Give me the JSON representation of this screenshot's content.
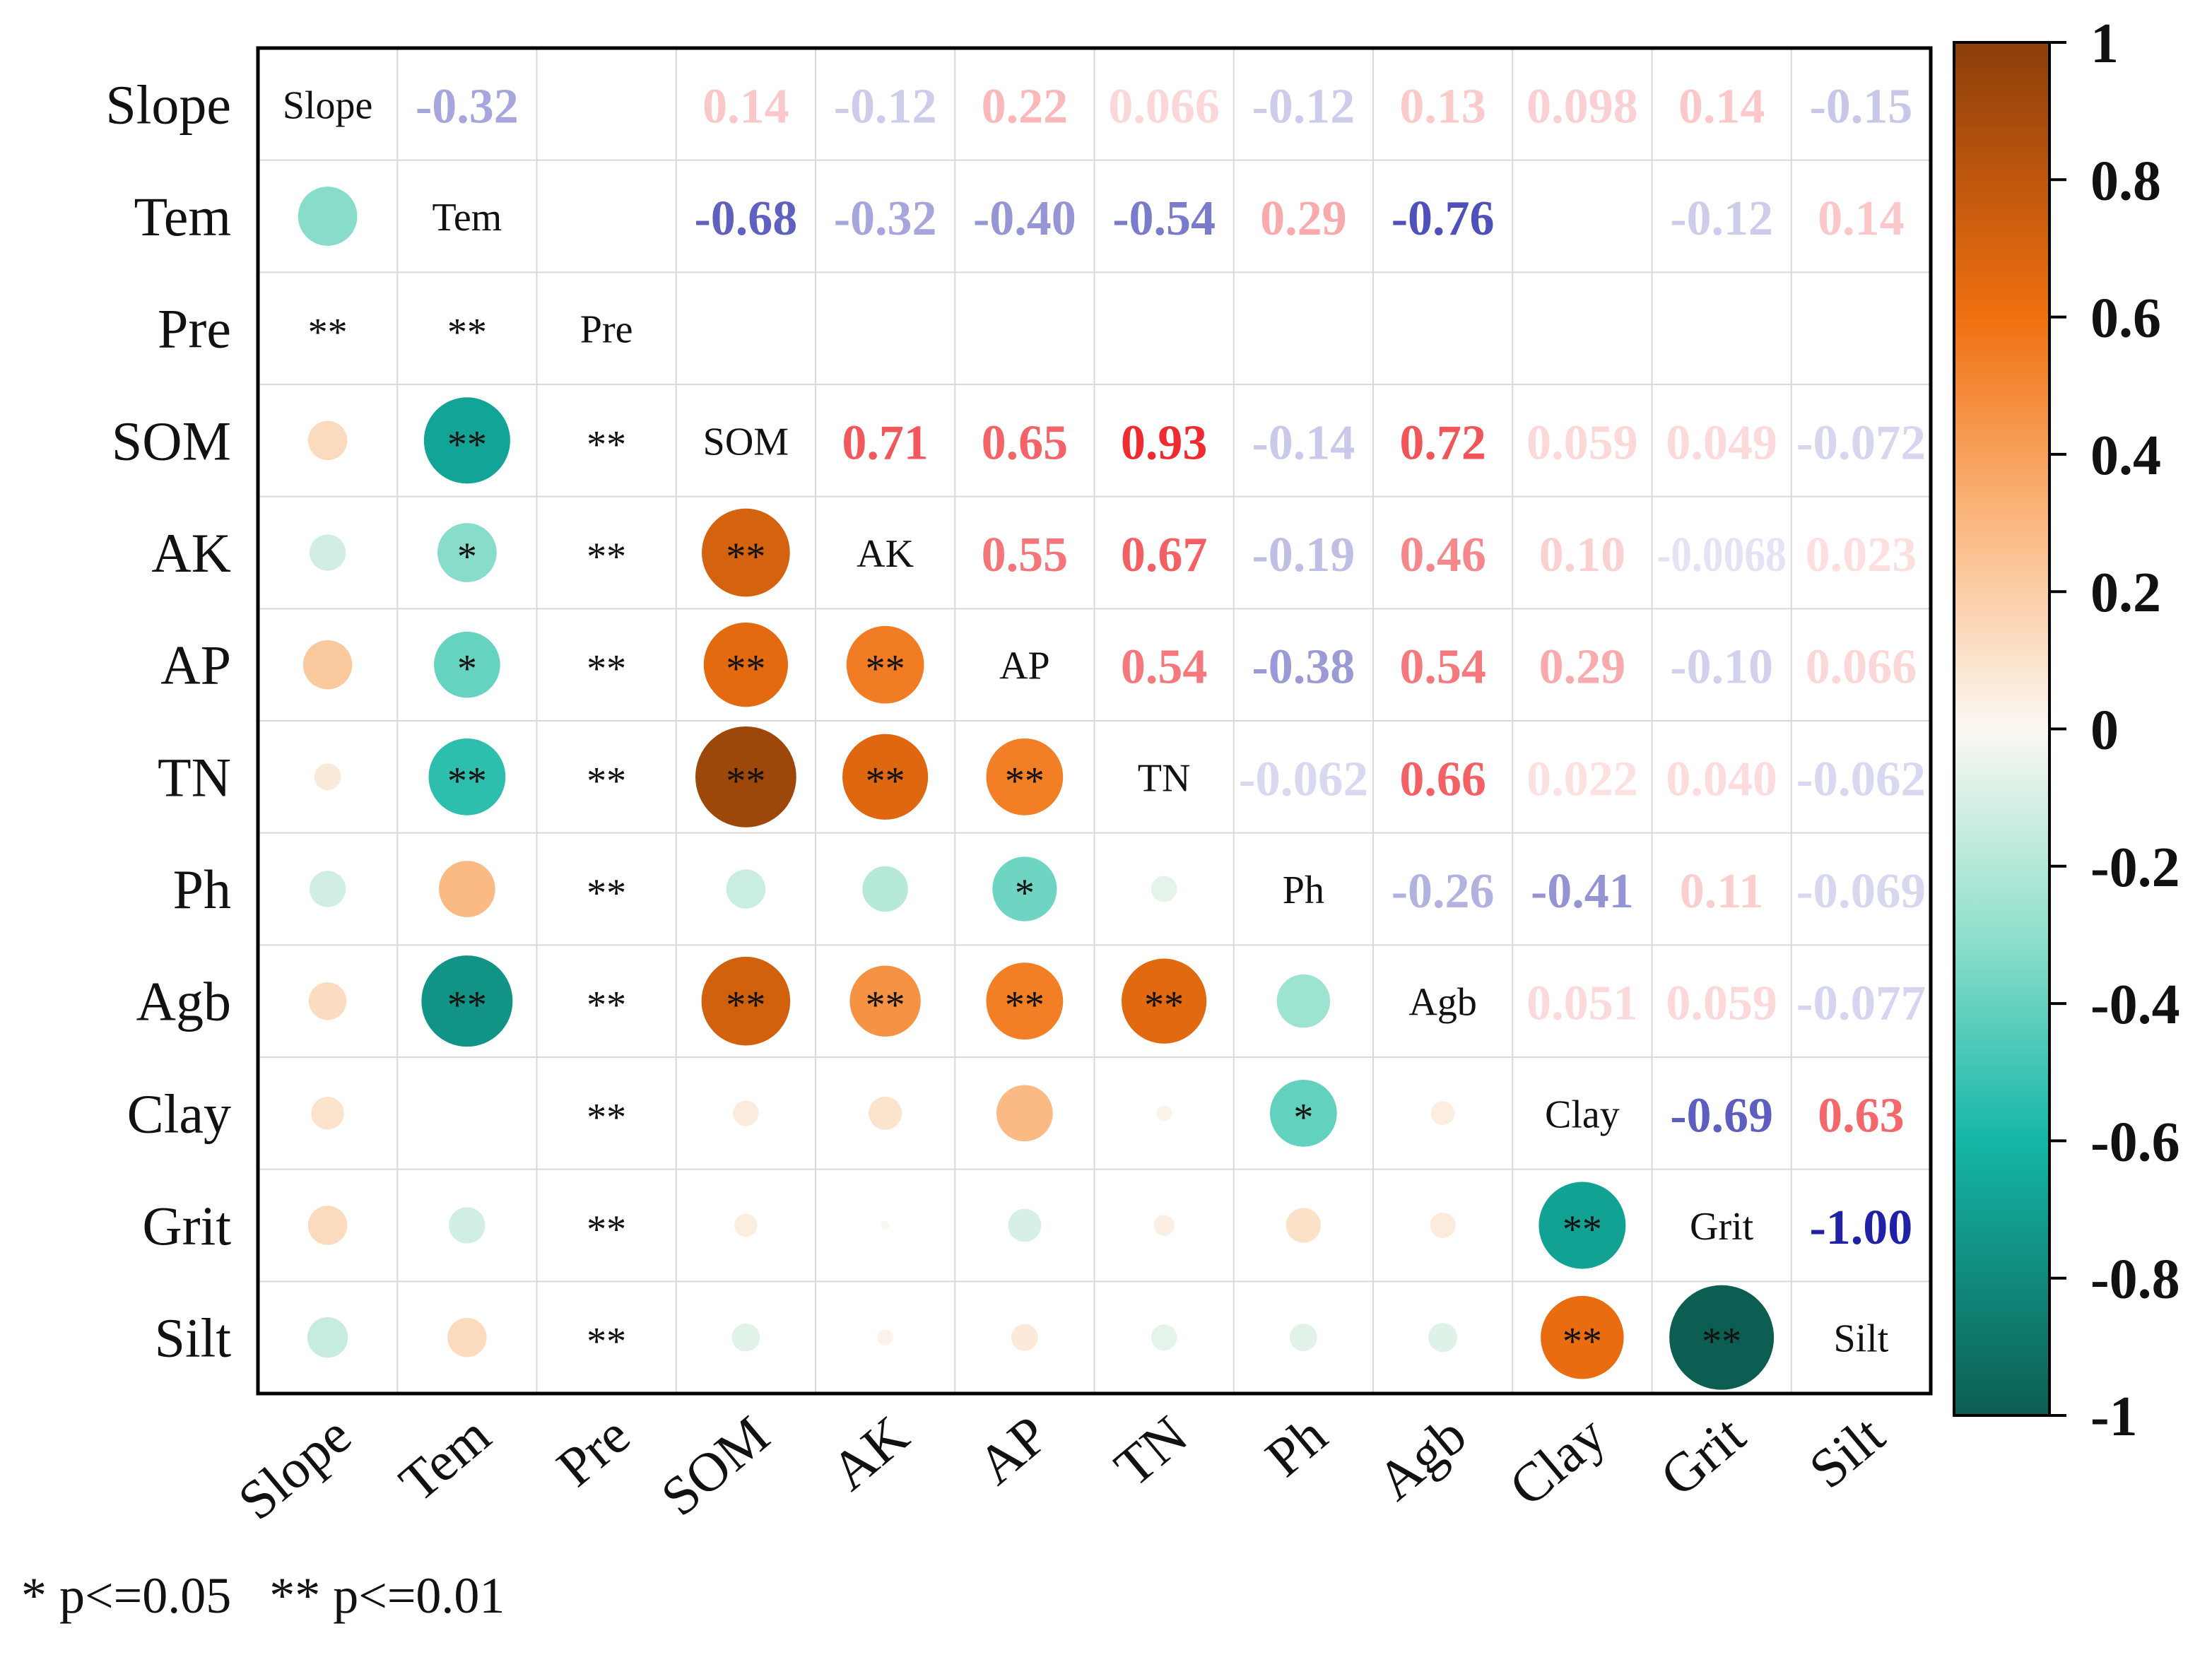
{
  "chart_data": {
    "type": "heatmap",
    "variables": [
      "Slope",
      "Tem",
      "Pre",
      "SOM",
      "AK",
      "AP",
      "TN",
      "Ph",
      "Agb",
      "Clay",
      "Grit",
      "Silt"
    ],
    "upper_labels": [
      [
        null,
        "-0.32",
        null,
        "0.14",
        "-0.12",
        "0.22",
        "0.066",
        "-0.12",
        "0.13",
        "0.098",
        "0.14",
        "-0.15"
      ],
      [
        null,
        null,
        null,
        "-0.68",
        "-0.32",
        "-0.40",
        "-0.54",
        "0.29",
        "-0.76",
        null,
        "-0.12",
        "0.14"
      ],
      [
        null,
        null,
        null,
        null,
        null,
        null,
        null,
        null,
        null,
        null,
        null,
        null
      ],
      [
        null,
        null,
        null,
        null,
        "0.71",
        "0.65",
        "0.93",
        "-0.14",
        "0.72",
        "0.059",
        "0.049",
        "-0.072"
      ],
      [
        null,
        null,
        null,
        null,
        null,
        "0.55",
        "0.67",
        "-0.19",
        "0.46",
        "0.10",
        "-0.0068",
        "0.023"
      ],
      [
        null,
        null,
        null,
        null,
        null,
        null,
        "0.54",
        "-0.38",
        "0.54",
        "0.29",
        "-0.10",
        "0.066"
      ],
      [
        null,
        null,
        null,
        null,
        null,
        null,
        null,
        "-0.062",
        "0.66",
        "0.022",
        "0.040",
        "-0.062"
      ],
      [
        null,
        null,
        null,
        null,
        null,
        null,
        null,
        null,
        "-0.26",
        "-0.41",
        "0.11",
        "-0.069"
      ],
      [
        null,
        null,
        null,
        null,
        null,
        null,
        null,
        null,
        null,
        "0.051",
        "0.059",
        "-0.077"
      ],
      [
        null,
        null,
        null,
        null,
        null,
        null,
        null,
        null,
        null,
        null,
        "-0.69",
        "0.63"
      ],
      [
        null,
        null,
        null,
        null,
        null,
        null,
        null,
        null,
        null,
        null,
        null,
        "-1.00"
      ],
      [
        null,
        null,
        null,
        null,
        null,
        null,
        null,
        null,
        null,
        null,
        null,
        null
      ]
    ],
    "lower_values": [
      [],
      [
        -0.32
      ],
      [
        null,
        null
      ],
      [
        0.14,
        -0.68,
        null
      ],
      [
        -0.12,
        -0.32,
        null,
        0.71
      ],
      [
        0.22,
        -0.4,
        null,
        0.65,
        0.55
      ],
      [
        0.066,
        -0.54,
        null,
        0.93,
        0.67,
        0.54
      ],
      [
        -0.12,
        0.29,
        null,
        -0.14,
        -0.19,
        -0.38,
        -0.062
      ],
      [
        0.13,
        -0.76,
        null,
        0.72,
        0.46,
        0.54,
        0.66,
        -0.26
      ],
      [
        0.098,
        0.0,
        null,
        0.059,
        0.1,
        0.29,
        0.022,
        -0.41,
        0.051
      ],
      [
        0.14,
        -0.12,
        null,
        0.049,
        -0.0068,
        -0.1,
        0.04,
        0.11,
        0.059,
        -0.69
      ],
      [
        -0.15,
        0.14,
        null,
        -0.072,
        0.023,
        0.066,
        -0.062,
        -0.069,
        -0.077,
        0.63,
        -1.0
      ]
    ],
    "significance": [
      [],
      [
        ""
      ],
      [
        "**",
        "**"
      ],
      [
        "",
        "**",
        "**"
      ],
      [
        "",
        "*",
        "**",
        "**"
      ],
      [
        "",
        "*",
        "**",
        "**",
        "**"
      ],
      [
        "",
        "**",
        "**",
        "**",
        "**",
        "**"
      ],
      [
        "",
        "",
        "**",
        "",
        "",
        "*",
        ""
      ],
      [
        "",
        "**",
        "**",
        "**",
        "**",
        "**",
        "**",
        ""
      ],
      [
        "",
        "",
        "**",
        "",
        "",
        "",
        "",
        "*",
        ""
      ],
      [
        "",
        "",
        "**",
        "",
        "",
        "",
        "",
        "",
        "",
        "**"
      ],
      [
        "",
        "",
        "**",
        "",
        "",
        "",
        "",
        "",
        "",
        "**",
        "**"
      ]
    ],
    "colorbar": {
      "min": -1,
      "max": 1,
      "ticks": [
        "1",
        "0.8",
        "0.6",
        "0.4",
        "0.2",
        "0",
        "-0.2",
        "-0.4",
        "-0.6",
        "-0.8",
        "-1"
      ],
      "stops": [
        {
          "v": -1.0,
          "color": "#0c5e52"
        },
        {
          "v": -0.6,
          "color": "#14b6a7"
        },
        {
          "v": -0.3,
          "color": "#8fe0cc"
        },
        {
          "v": 0.0,
          "color": "#fbf8f2"
        },
        {
          "v": 0.3,
          "color": "#fbb880"
        },
        {
          "v": 0.6,
          "color": "#f07010"
        },
        {
          "v": 1.0,
          "color": "#8c3e0a"
        }
      ]
    },
    "text_colors": {
      "positive": "#ee1d23",
      "negative": "#2121a8"
    },
    "legend_note": "* p<=0.05   ** p<=0.01"
  }
}
